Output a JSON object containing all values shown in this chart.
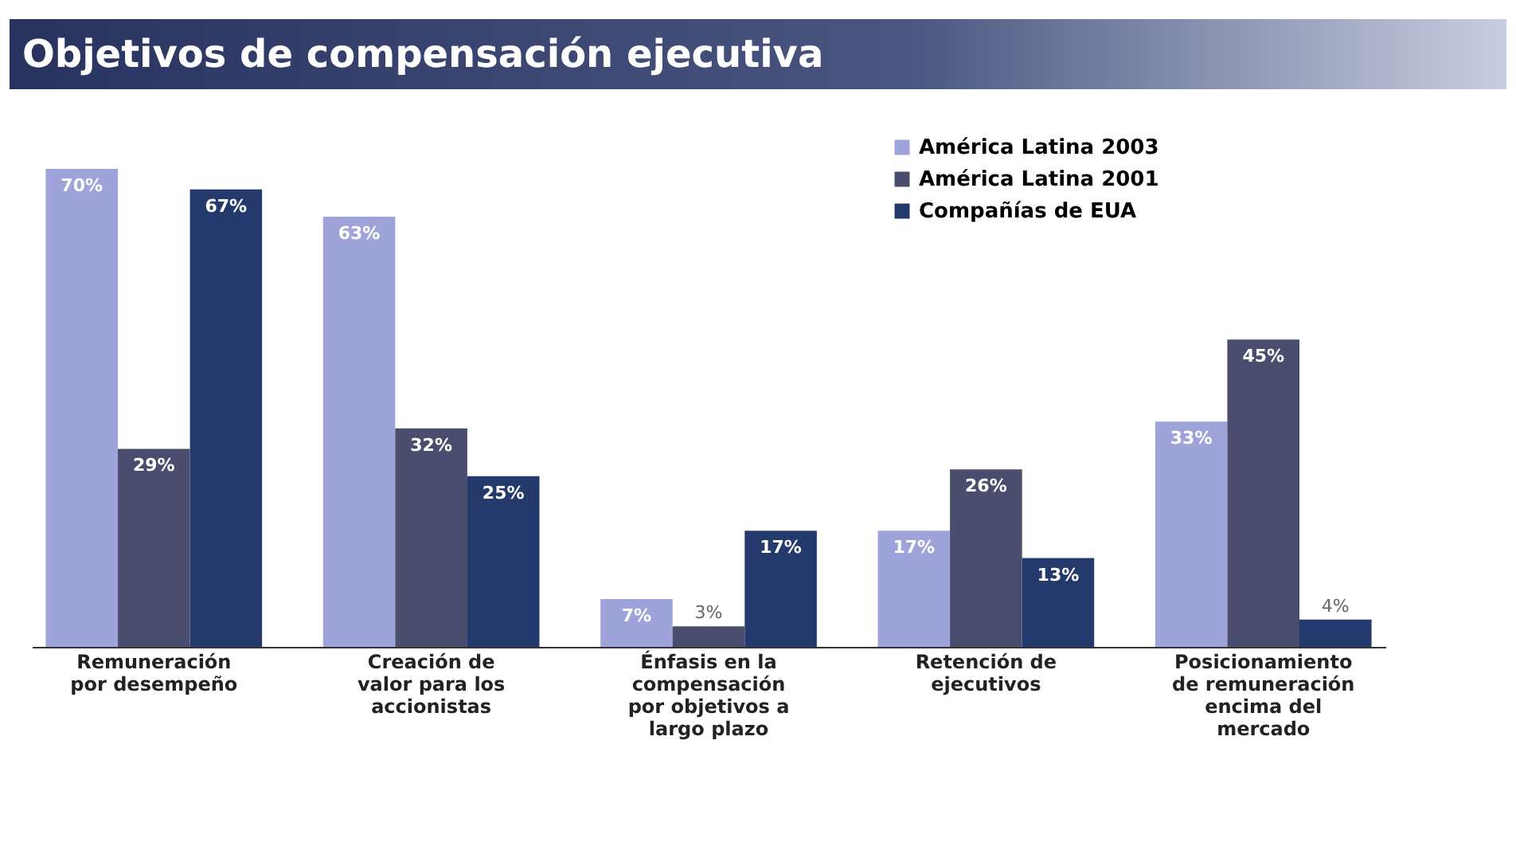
{
  "chart_data": {
    "type": "bar",
    "title": "Objetivos de compensación ejecutiva",
    "categories": [
      "Remuneración por desempeño",
      "Creación de valor para los accionistas",
      "Énfasis en la compensación por objetivos a largo plazo",
      "Retención de ejecutivos",
      "Posicionamiento de remuneración encima del mercado"
    ],
    "series": [
      {
        "name": "América Latina 2003",
        "color": "#9ea3da",
        "values": [
          70,
          63,
          7,
          17,
          33
        ],
        "value_labels": [
          "70%",
          "63%",
          "7%",
          "17%",
          "33%"
        ]
      },
      {
        "name": "América Latina 2001",
        "color": "#4b4d6e",
        "values": [
          29,
          32,
          3,
          26,
          45
        ],
        "value_labels": [
          "29%",
          "32%",
          "3%",
          "26%",
          "45%"
        ]
      },
      {
        "name": "Compañías de EUA",
        "color": "#253a6c",
        "values": [
          67,
          25,
          17,
          13,
          4
        ],
        "value_labels": [
          "67%",
          "25%",
          "17%",
          "13%",
          "4%"
        ]
      }
    ],
    "legend": "top right"
  }
}
